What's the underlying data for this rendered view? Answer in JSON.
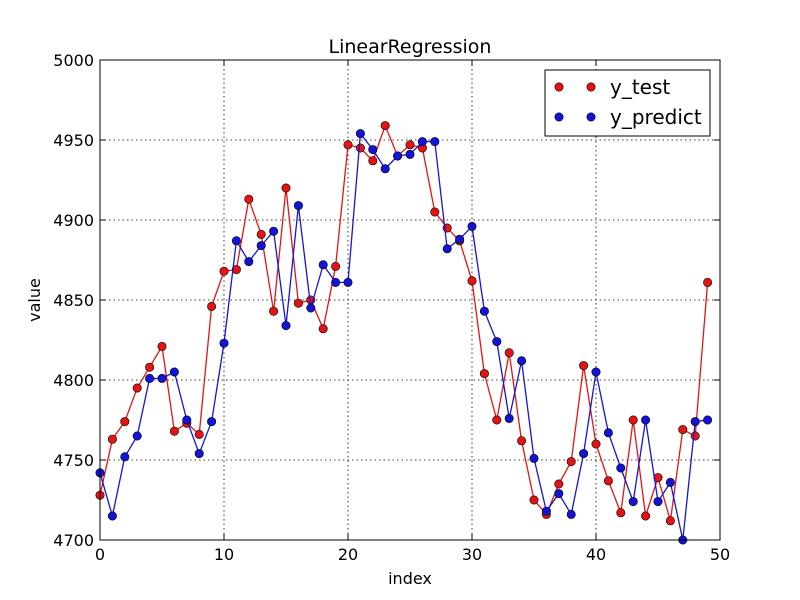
{
  "chart_data": {
    "type": "line",
    "title": "LinearRegression",
    "xlabel": "index",
    "ylabel": "value",
    "xlim": [
      0,
      50
    ],
    "ylim": [
      4700,
      5000
    ],
    "xticks": [
      0,
      10,
      20,
      30,
      40,
      50
    ],
    "yticks": [
      4700,
      4750,
      4800,
      4850,
      4900,
      4950,
      5000
    ],
    "grid": true,
    "legend_position": "top-right",
    "x": [
      0,
      1,
      2,
      3,
      4,
      5,
      6,
      7,
      8,
      9,
      10,
      11,
      12,
      13,
      14,
      15,
      16,
      17,
      18,
      19,
      20,
      21,
      22,
      23,
      24,
      25,
      26,
      27,
      28,
      29,
      30,
      31,
      32,
      33,
      34,
      35,
      36,
      37,
      38,
      39,
      40,
      41,
      42,
      43,
      44,
      45,
      46,
      47,
      48,
      49
    ],
    "series": [
      {
        "name": "y_test",
        "color": "#e41414",
        "values": [
          4728,
          4763,
          4774,
          4795,
          4808,
          4821,
          4768,
          4773,
          4766,
          4846,
          4868,
          4869,
          4913,
          4891,
          4843,
          4920,
          4848,
          4850,
          4832,
          4871,
          4947,
          4945,
          4937,
          4959,
          4940,
          4947,
          4945,
          4905,
          4895,
          4887,
          4862,
          4804,
          4775,
          4817,
          4762,
          4725,
          4716,
          4735,
          4749,
          4809,
          4760,
          4737,
          4717,
          4775,
          4715,
          4739,
          4712,
          4769,
          4765,
          4861
        ]
      },
      {
        "name": "y_predict",
        "color": "#1414d8",
        "values": [
          4742,
          4715,
          4752,
          4765,
          4801,
          4801,
          4805,
          4775,
          4754,
          4774,
          4823,
          4887,
          4874,
          4884,
          4893,
          4834,
          4909,
          4845,
          4872,
          4861,
          4861,
          4954,
          4944,
          4932,
          4940,
          4941,
          4949,
          4949,
          4882,
          4888,
          4896,
          4843,
          4824,
          4776,
          4812,
          4751,
          4718,
          4729,
          4716,
          4754,
          4805,
          4767,
          4745,
          4724,
          4775,
          4724,
          4736,
          4700,
          4774,
          4775
        ]
      }
    ]
  }
}
